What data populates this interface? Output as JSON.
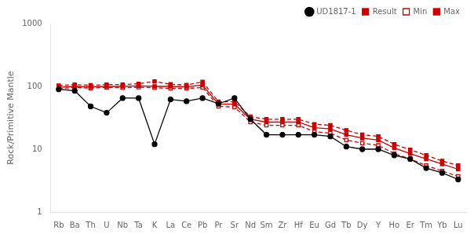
{
  "chart_data": {
    "type": "line",
    "ylabel": "Rock/Primitive Mantle",
    "categories": [
      "Rb",
      "Ba",
      "Th",
      "U",
      "Nb",
      "Ta",
      "K",
      "La",
      "Ce",
      "Pb",
      "Pr",
      "Sr",
      "Nd",
      "Sm",
      "Zr",
      "Hf",
      "Eu",
      "Gd",
      "Tb",
      "Dy",
      "Y",
      "Ho",
      "Er",
      "Tm",
      "Yb",
      "Lu"
    ],
    "series": [
      {
        "name": "UD1817-1",
        "color": "#000000",
        "marker": "circle",
        "line_style": "solid",
        "values": [
          90,
          85,
          48,
          38,
          65,
          65,
          12,
          62,
          58,
          65,
          53,
          65,
          30,
          17,
          17,
          17,
          17,
          16,
          11,
          10,
          10,
          8,
          7,
          5,
          4.2,
          3.3
        ]
      },
      {
        "name": "Result",
        "color": "#cc0000",
        "marker": "square",
        "line_style": "solid",
        "values": [
          97,
          100,
          98,
          100,
          100,
          102,
          100,
          100,
          98,
          105,
          52,
          52,
          30,
          27,
          27,
          27,
          22,
          21,
          17,
          15,
          14,
          10.5,
          8.5,
          7,
          5.8,
          4.8
        ]
      },
      {
        "name": "Min",
        "color": "#cc0000",
        "marker": "open_square",
        "line_style": "dashed",
        "values": [
          92,
          96,
          94,
          96,
          95,
          97,
          95,
          93,
          93,
          96,
          48,
          47,
          27,
          24,
          24,
          24,
          19,
          18,
          14,
          12.5,
          11.5,
          8.5,
          7,
          5.5,
          4.5,
          3.7
        ]
      },
      {
        "name": "Max",
        "color": "#cc0000",
        "marker": "square",
        "line_style": "dashed",
        "values": [
          103,
          107,
          104,
          107,
          107,
          110,
          120,
          108,
          105,
          118,
          57,
          57,
          33,
          30,
          30,
          30,
          25,
          24,
          20,
          17,
          16,
          12,
          9.8,
          8,
          6.5,
          5.5
        ]
      }
    ],
    "log": "y",
    "ylim": [
      1,
      1000
    ],
    "yticks": [
      1,
      10,
      100,
      1000
    ],
    "grid": false,
    "legend": "upper right"
  }
}
